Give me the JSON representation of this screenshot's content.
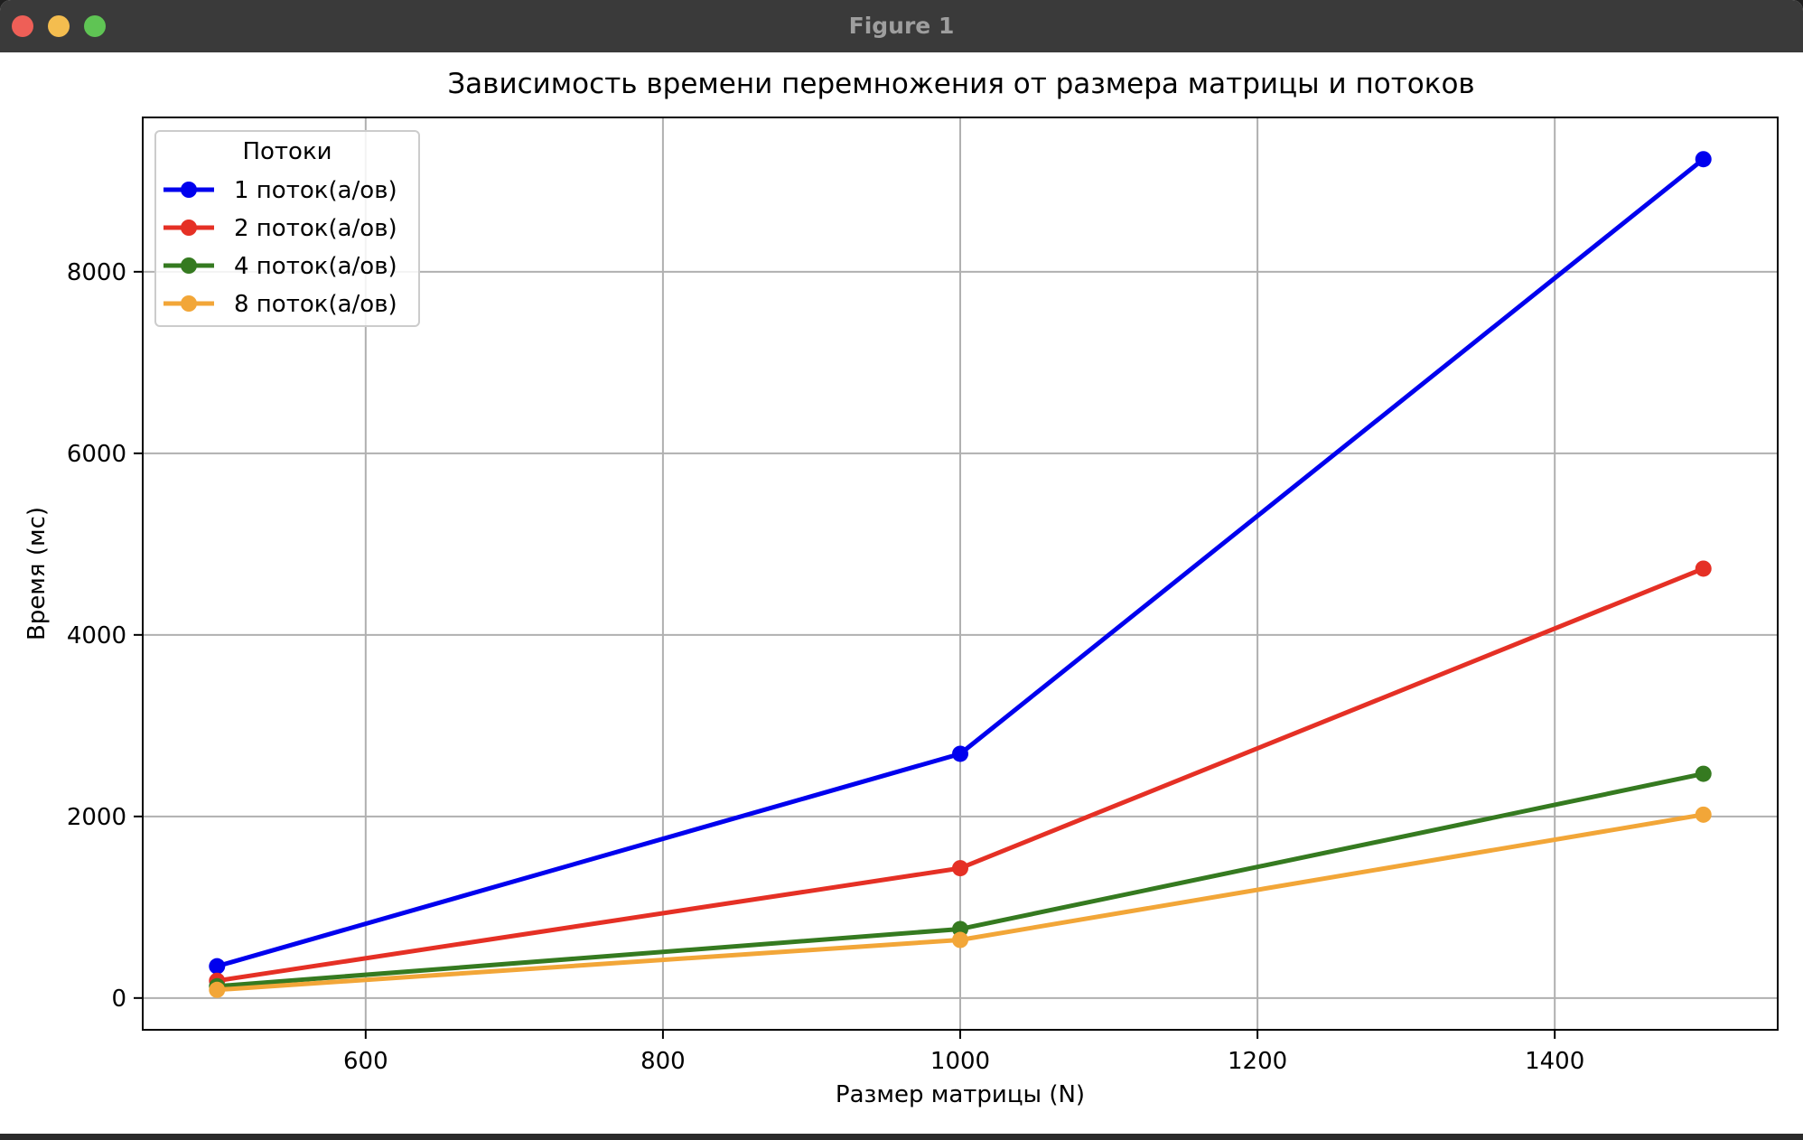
{
  "window": {
    "title": "Figure 1"
  },
  "chart_data": {
    "type": "line",
    "title": "Зависимость времени перемножения от размера матрицы и потоков",
    "xlabel": "Размер матрицы (N)",
    "ylabel": "Время (мс)",
    "x": [
      500,
      1000,
      1500
    ],
    "xlim": [
      450,
      1550
    ],
    "ylim": [
      -350,
      9700
    ],
    "xticks": [
      600,
      800,
      1000,
      1200,
      1400
    ],
    "yticks": [
      0,
      2000,
      4000,
      6000,
      8000
    ],
    "grid": true,
    "legend": {
      "title": "Потоки",
      "placement": "top-left"
    },
    "series": [
      {
        "name": "1 поток(а/ов)",
        "color": "#0000ee",
        "values": [
          350,
          2690,
          9240
        ]
      },
      {
        "name": "2 поток(а/ов)",
        "color": "#e53025",
        "values": [
          190,
          1430,
          4730
        ]
      },
      {
        "name": "4 поток(а/ов)",
        "color": "#357a20",
        "values": [
          130,
          760,
          2470
        ]
      },
      {
        "name": "8 поток(а/ов)",
        "color": "#f2a638",
        "values": [
          90,
          640,
          2020
        ]
      }
    ]
  }
}
